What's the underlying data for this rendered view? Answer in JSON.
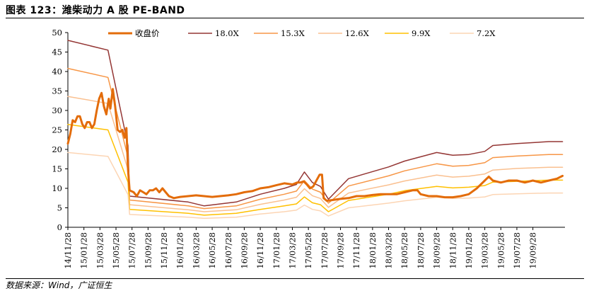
{
  "figure": {
    "title": "图表 123：潍柴动力 A 股 PE-BAND",
    "source": "数据来源：Wind，广证恒生"
  },
  "chart_data": {
    "type": "line",
    "title": "潍柴动力 A 股 PE-BAND",
    "ylim": [
      0,
      50
    ],
    "yticks": [
      0,
      5,
      10,
      15,
      20,
      25,
      30,
      35,
      40,
      45,
      50
    ],
    "x_range": [
      0,
      62
    ],
    "x_ticks": [
      {
        "label": "14/11/28",
        "t": 0
      },
      {
        "label": "15/01/28",
        "t": 2
      },
      {
        "label": "15/03/28",
        "t": 4
      },
      {
        "label": "15/05/28",
        "t": 6
      },
      {
        "label": "15/07/28",
        "t": 8
      },
      {
        "label": "15/09/28",
        "t": 10
      },
      {
        "label": "15/11/28",
        "t": 12
      },
      {
        "label": "16/01/28",
        "t": 14
      },
      {
        "label": "16/03/28",
        "t": 16
      },
      {
        "label": "16/05/28",
        "t": 18
      },
      {
        "label": "16/07/28",
        "t": 20
      },
      {
        "label": "16/09/28",
        "t": 22
      },
      {
        "label": "16/11/28",
        "t": 24
      },
      {
        "label": "17/01/28",
        "t": 26
      },
      {
        "label": "17/03/28",
        "t": 28
      },
      {
        "label": "17/05/28",
        "t": 30
      },
      {
        "label": "17/07/28",
        "t": 32
      },
      {
        "label": "17/09/28",
        "t": 34
      },
      {
        "label": "17/11/28",
        "t": 36
      },
      {
        "label": "18/01/28",
        "t": 38
      },
      {
        "label": "18/03/28",
        "t": 40
      },
      {
        "label": "18/05/28",
        "t": 42
      },
      {
        "label": "18/07/28",
        "t": 44
      },
      {
        "label": "18/09/28",
        "t": 46
      },
      {
        "label": "18/11/28",
        "t": 48
      },
      {
        "label": "19/01/28",
        "t": 50
      },
      {
        "label": "19/03/28",
        "t": 52
      },
      {
        "label": "19/05/28",
        "t": 54
      },
      {
        "label": "19/07/28",
        "t": 56
      },
      {
        "label": "19/09/28",
        "t": 58
      }
    ],
    "series": [
      {
        "name": "收盘价",
        "color": "#E36C0A",
        "width": 3,
        "points": [
          [
            0,
            21.5
          ],
          [
            0.3,
            24
          ],
          [
            0.6,
            27.5
          ],
          [
            0.9,
            27
          ],
          [
            1.2,
            28.5
          ],
          [
            1.5,
            28.5
          ],
          [
            1.8,
            26.5
          ],
          [
            2.1,
            25.5
          ],
          [
            2.4,
            27
          ],
          [
            2.7,
            27
          ],
          [
            3.0,
            25.5
          ],
          [
            3.3,
            26.5
          ],
          [
            3.6,
            30
          ],
          [
            3.9,
            33
          ],
          [
            4.2,
            34.5
          ],
          [
            4.5,
            31
          ],
          [
            4.8,
            29
          ],
          [
            5.1,
            33
          ],
          [
            5.3,
            30.5
          ],
          [
            5.6,
            35.5
          ],
          [
            5.9,
            31
          ],
          [
            6.2,
            25
          ],
          [
            6.5,
            24.5
          ],
          [
            6.8,
            25
          ],
          [
            7.1,
            23
          ],
          [
            7.3,
            25.5
          ],
          [
            7.5,
            15
          ],
          [
            7.7,
            9.5
          ],
          [
            8.2,
            9
          ],
          [
            8.6,
            8
          ],
          [
            9.0,
            9.5
          ],
          [
            9.4,
            9
          ],
          [
            9.8,
            8.5
          ],
          [
            10.2,
            9.5
          ],
          [
            10.6,
            9.5
          ],
          [
            11.0,
            10
          ],
          [
            11.4,
            9
          ],
          [
            11.8,
            10
          ],
          [
            12.2,
            9
          ],
          [
            12.6,
            8
          ],
          [
            13.2,
            7.5
          ],
          [
            14,
            7.8
          ],
          [
            15,
            8
          ],
          [
            16,
            8.2
          ],
          [
            17,
            8
          ],
          [
            18,
            7.8
          ],
          [
            19,
            8
          ],
          [
            20,
            8.2
          ],
          [
            21,
            8.5
          ],
          [
            22,
            9
          ],
          [
            23,
            9.3
          ],
          [
            24,
            10
          ],
          [
            25,
            10.3
          ],
          [
            26,
            10.8
          ],
          [
            27,
            11.3
          ],
          [
            28,
            11
          ],
          [
            28.6,
            11.5
          ],
          [
            29.0,
            11.5
          ],
          [
            29.4,
            11.8
          ],
          [
            29.8,
            11
          ],
          [
            30.2,
            10
          ],
          [
            30.6,
            10.5
          ],
          [
            31.0,
            12
          ],
          [
            31.4,
            13.5
          ],
          [
            31.7,
            13.5
          ],
          [
            31.9,
            7.5
          ],
          [
            32.3,
            6.8
          ],
          [
            33,
            7
          ],
          [
            34,
            7.3
          ],
          [
            35,
            7.5
          ],
          [
            36,
            8
          ],
          [
            37,
            8
          ],
          [
            38,
            8.3
          ],
          [
            39,
            8.5
          ],
          [
            40,
            8.5
          ],
          [
            41,
            8.5
          ],
          [
            42,
            9
          ],
          [
            43,
            9.5
          ],
          [
            43.6,
            9.5
          ],
          [
            44,
            8.5
          ],
          [
            45,
            8
          ],
          [
            46,
            8
          ],
          [
            47,
            7.7
          ],
          [
            48,
            7.7
          ],
          [
            49,
            8
          ],
          [
            50,
            8.5
          ],
          [
            51,
            10
          ],
          [
            52,
            12
          ],
          [
            52.5,
            13
          ],
          [
            53,
            12
          ],
          [
            54,
            11.5
          ],
          [
            55,
            12
          ],
          [
            56,
            12
          ],
          [
            57,
            11.5
          ],
          [
            58,
            12
          ],
          [
            59,
            11.5
          ],
          [
            60,
            12
          ],
          [
            61,
            12.5
          ],
          [
            61.7,
            13.2
          ]
        ]
      },
      {
        "name": "18.0X",
        "color": "#943634",
        "width": 1.5,
        "points": [
          [
            0,
            48
          ],
          [
            5,
            45.5
          ],
          [
            7.5,
            21
          ],
          [
            7.7,
            8
          ],
          [
            15,
            6.5
          ],
          [
            17,
            5.5
          ],
          [
            21,
            6.5
          ],
          [
            24,
            8.5
          ],
          [
            27,
            10
          ],
          [
            28.5,
            11
          ],
          [
            29.5,
            14.2
          ],
          [
            30.5,
            11.5
          ],
          [
            31.5,
            10.5
          ],
          [
            32.5,
            7.2
          ],
          [
            35,
            12.5
          ],
          [
            40,
            15.5
          ],
          [
            42,
            17
          ],
          [
            46,
            19.2
          ],
          [
            48,
            18.5
          ],
          [
            50,
            18.7
          ],
          [
            52,
            19.5
          ],
          [
            53,
            21
          ],
          [
            56,
            21.5
          ],
          [
            60,
            22
          ],
          [
            61.7,
            22
          ]
        ]
      },
      {
        "name": "15.3X",
        "color": "#F79646",
        "width": 1.5,
        "points": [
          [
            0,
            40.8
          ],
          [
            5,
            38.5
          ],
          [
            7.5,
            18
          ],
          [
            7.7,
            7
          ],
          [
            15,
            5.5
          ],
          [
            17,
            4.8
          ],
          [
            21,
            5.5
          ],
          [
            24,
            7.2
          ],
          [
            27,
            8.5
          ],
          [
            28.5,
            9.3
          ],
          [
            29.5,
            12
          ],
          [
            30.5,
            9.8
          ],
          [
            31.5,
            9
          ],
          [
            32.5,
            6.2
          ],
          [
            35,
            10.6
          ],
          [
            40,
            13.2
          ],
          [
            42,
            14.5
          ],
          [
            46,
            16.3
          ],
          [
            48,
            15.7
          ],
          [
            50,
            15.9
          ],
          [
            52,
            16.6
          ],
          [
            53,
            17.9
          ],
          [
            56,
            18.3
          ],
          [
            60,
            18.7
          ],
          [
            61.7,
            18.7
          ]
        ]
      },
      {
        "name": "12.6X",
        "color": "#FAC090",
        "width": 1.5,
        "points": [
          [
            0,
            33.6
          ],
          [
            5,
            31.8
          ],
          [
            7.5,
            14.8
          ],
          [
            7.7,
            5.8
          ],
          [
            15,
            4.5
          ],
          [
            17,
            4
          ],
          [
            21,
            4.5
          ],
          [
            24,
            5.9
          ],
          [
            27,
            7
          ],
          [
            28.5,
            7.7
          ],
          [
            29.5,
            9.9
          ],
          [
            30.5,
            8.1
          ],
          [
            31.5,
            7.4
          ],
          [
            32.5,
            5.1
          ],
          [
            35,
            8.8
          ],
          [
            40,
            10.9
          ],
          [
            42,
            11.9
          ],
          [
            46,
            13.4
          ],
          [
            48,
            12.9
          ],
          [
            50,
            13.1
          ],
          [
            52,
            13.7
          ],
          [
            53,
            14.7
          ],
          [
            56,
            15.1
          ],
          [
            60,
            15.4
          ],
          [
            61.7,
            15.4
          ]
        ]
      },
      {
        "name": "9.9X",
        "color": "#FFC000",
        "width": 1.5,
        "points": [
          [
            0,
            26.4
          ],
          [
            5,
            25
          ],
          [
            7.5,
            11.6
          ],
          [
            7.7,
            4.6
          ],
          [
            15,
            3.6
          ],
          [
            17,
            3.1
          ],
          [
            21,
            3.6
          ],
          [
            24,
            4.6
          ],
          [
            27,
            5.5
          ],
          [
            28.5,
            6
          ],
          [
            29.5,
            7.8
          ],
          [
            30.5,
            6.3
          ],
          [
            31.5,
            5.8
          ],
          [
            32.5,
            4
          ],
          [
            35,
            6.9
          ],
          [
            40,
            8.5
          ],
          [
            42,
            9.4
          ],
          [
            46,
            10.5
          ],
          [
            48,
            10.1
          ],
          [
            50,
            10.3
          ],
          [
            52,
            10.7
          ],
          [
            53,
            11.6
          ],
          [
            56,
            11.8
          ],
          [
            60,
            12.1
          ],
          [
            61.7,
            12.1
          ]
        ]
      },
      {
        "name": "7.2X",
        "color": "#FCD5B4",
        "width": 1.5,
        "points": [
          [
            0,
            19.2
          ],
          [
            5,
            18.2
          ],
          [
            7.5,
            8.4
          ],
          [
            7.7,
            3.3
          ],
          [
            15,
            2.6
          ],
          [
            17,
            2.3
          ],
          [
            21,
            2.6
          ],
          [
            24,
            3.4
          ],
          [
            27,
            4
          ],
          [
            28.5,
            4.4
          ],
          [
            29.5,
            5.7
          ],
          [
            30.5,
            4.6
          ],
          [
            31.5,
            4.2
          ],
          [
            32.5,
            2.9
          ],
          [
            35,
            5
          ],
          [
            40,
            6.2
          ],
          [
            42,
            6.8
          ],
          [
            46,
            7.7
          ],
          [
            48,
            7.4
          ],
          [
            50,
            7.5
          ],
          [
            52,
            7.8
          ],
          [
            53,
            8.4
          ],
          [
            56,
            8.6
          ],
          [
            60,
            8.8
          ],
          [
            61.7,
            8.8
          ]
        ]
      }
    ]
  }
}
